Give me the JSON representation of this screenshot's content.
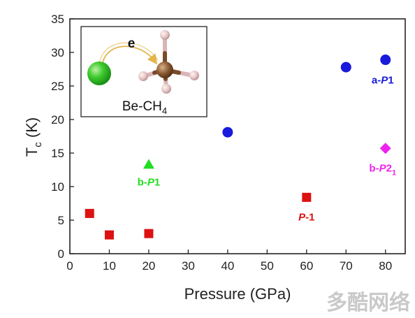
{
  "chart_data": {
    "type": "scatter",
    "xlabel": "Pressure (GPa)",
    "ylabel": "T",
    "ylabel_sub": "c",
    "ylabel_unit": " (K)",
    "xlim": [
      0,
      85
    ],
    "ylim": [
      0,
      35
    ],
    "xticks": [
      0,
      10,
      20,
      30,
      40,
      50,
      60,
      70,
      80
    ],
    "yticks": [
      0,
      5,
      10,
      15,
      20,
      25,
      30,
      35
    ],
    "grid": false,
    "series": [
      {
        "label_prefix": "a-",
        "label_italic": "P",
        "label_suffix": "1",
        "label_sub": "",
        "marker": "circle",
        "color": "#1a1adc",
        "points": [
          {
            "x": 40,
            "y": 18.1
          },
          {
            "x": 70,
            "y": 27.8
          },
          {
            "x": 80,
            "y": 28.9
          }
        ]
      },
      {
        "label_prefix": "b-",
        "label_italic": "P",
        "label_suffix": "1",
        "label_sub": "",
        "marker": "triangle",
        "color": "#22dd22",
        "points": [
          {
            "x": 20,
            "y": 13.3
          }
        ]
      },
      {
        "label_prefix": "b-",
        "label_italic": "P",
        "label_suffix": "2",
        "label_sub": "1",
        "marker": "diamond",
        "color": "#ee22ee",
        "points": [
          {
            "x": 80,
            "y": 15.7
          }
        ]
      },
      {
        "label_prefix": "",
        "label_italic": "P",
        "label_suffix": "-1",
        "label_sub": "",
        "marker": "square",
        "color": "#dd1111",
        "points": [
          {
            "x": 5,
            "y": 6.0
          },
          {
            "x": 10,
            "y": 2.8
          },
          {
            "x": 20,
            "y": 3.0
          },
          {
            "x": 60,
            "y": 8.4
          }
        ]
      }
    ],
    "inset": {
      "arrow_label": "e",
      "caption_main": "Be-CH",
      "caption_sub": "4",
      "colors": {
        "be": "#22bb22",
        "carbon": "#8a5a33",
        "hydrogen": "#e4c3c3"
      }
    }
  },
  "watermark": "多酷网络"
}
